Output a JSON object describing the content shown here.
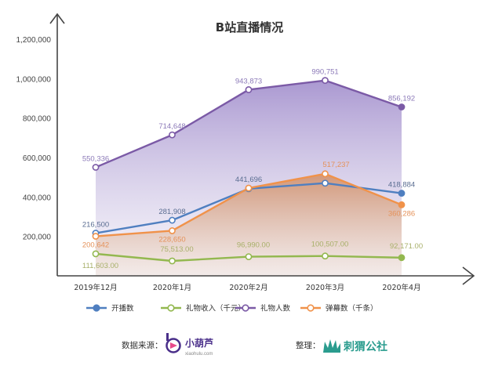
{
  "chart_data": {
    "type": "line",
    "title": "B站直播情况",
    "categories": [
      "2019年12月",
      "2020年1月",
      "2020年2月",
      "2020年3月",
      "2020年4月"
    ],
    "y_ticks": [
      "200,000",
      "400,000",
      "600,000",
      "800,000",
      "1,000,000",
      "1,200,000"
    ],
    "ylim": [
      0,
      1300000
    ],
    "grid": false,
    "legend_position": "bottom",
    "series": [
      {
        "name": "开播数",
        "color": "#4f7fc0",
        "area": false,
        "values": [
          216500,
          281908,
          441696,
          470000,
          418884
        ],
        "labels": [
          "216,500",
          "281,908",
          "441,696",
          "",
          "418,884"
        ]
      },
      {
        "name": "礼物收入（千元）",
        "color": "#93b84f",
        "area": false,
        "values": [
          111603,
          75513,
          96990,
          100507,
          92171
        ],
        "labels": [
          "111,603.00",
          "75,513.00",
          "96,990.00",
          "100,507.00",
          "92,171.00"
        ]
      },
      {
        "name": "礼物人数",
        "color": "#7b5aa6",
        "area": true,
        "values": [
          550336,
          714648,
          943873,
          990751,
          856192
        ],
        "labels": [
          "550,336",
          "714,648",
          "943,873",
          "990,751",
          "856,192"
        ]
      },
      {
        "name": "弹幕数（千条）",
        "color": "#f0924a",
        "area": true,
        "values": [
          200642,
          228650,
          445000,
          517237,
          360286
        ],
        "labels": [
          "200,642",
          "228,650",
          "",
          "517,237",
          "360,286"
        ]
      }
    ]
  },
  "footer": {
    "source_label": "数据来源：",
    "source_brand": "小葫芦",
    "source_url": "xiaohulu.com",
    "organizer_label": "整理：",
    "organizer_brand": "刺猬公社"
  }
}
